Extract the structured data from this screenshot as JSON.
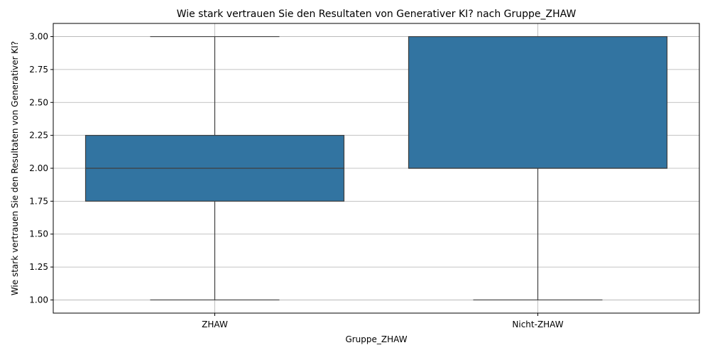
{
  "chart_data": {
    "type": "box",
    "title": "Wie stark vertrauen Sie den Resultaten von Generativer KI? nach Gruppe_ZHAW",
    "xlabel": "Gruppe_ZHAW",
    "ylabel": "Wie stark vertrauen Sie den Resultaten von Generativer KI?",
    "categories": [
      "ZHAW",
      "Nicht-ZHAW"
    ],
    "boxes": [
      {
        "category": "ZHAW",
        "min": 1.0,
        "q1": 1.75,
        "median": 2.0,
        "q3": 2.25,
        "max": 3.0
      },
      {
        "category": "Nicht-ZHAW",
        "min": 1.0,
        "q1": 2.0,
        "median": 2.0,
        "q3": 3.0,
        "max": 3.0
      }
    ],
    "ylim": [
      0.9,
      3.1
    ],
    "yticks": [
      1.0,
      1.25,
      1.5,
      1.75,
      2.0,
      2.25,
      2.5,
      2.75,
      3.0
    ],
    "ytick_labels": [
      "1.00",
      "1.25",
      "1.50",
      "1.75",
      "2.00",
      "2.25",
      "2.50",
      "2.75",
      "3.00"
    ],
    "grid": true,
    "box_color": "#3274a1",
    "line_color": "#3f3f3f",
    "grid_color": "#b0b0b0"
  }
}
